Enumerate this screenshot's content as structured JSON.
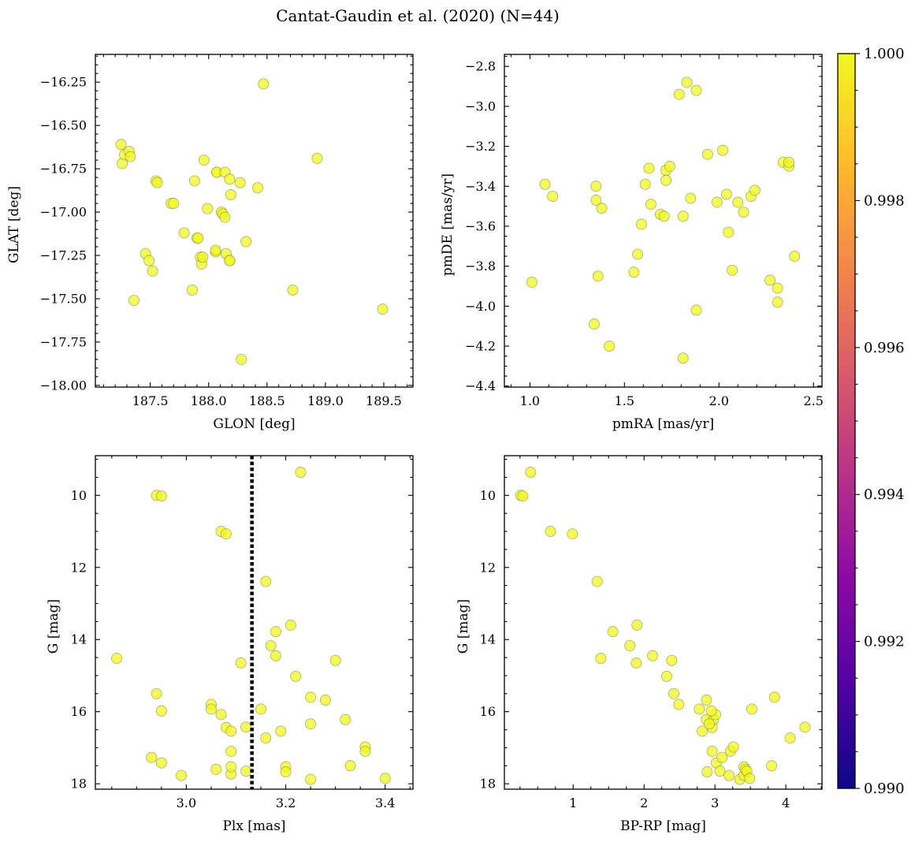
{
  "figure": {
    "title": "Cantat-Gaudin et al. (2020) (N=44)"
  },
  "colorbar": {
    "range": [
      0.99,
      1.0
    ],
    "ticks": [
      "0.990",
      "0.992",
      "0.994",
      "0.996",
      "0.998",
      "1.000"
    ],
    "colormap": [
      "#0d0887",
      "#5302a3",
      "#8b0aa5",
      "#b83289",
      "#db5c68",
      "#f48849",
      "#febd2a",
      "#f0f921"
    ]
  },
  "marker_color": "#f0f921",
  "chart_data": [
    {
      "type": "scatter",
      "id": "sky",
      "xlabel": "GLON [deg]",
      "ylabel": "GLAT [deg]",
      "xlim": [
        187.03,
        189.75
      ],
      "ylim": [
        -18.01,
        -16.09
      ],
      "invert_y": false,
      "xticks": [
        187.5,
        188.0,
        188.5,
        189.0,
        189.5
      ],
      "xtick_labels": [
        "187.5",
        "188.0",
        "188.5",
        "189.0",
        "189.5"
      ],
      "yticks": [
        -16.25,
        -16.5,
        -16.75,
        -17.0,
        -17.25,
        -17.5,
        -17.75,
        -18.0
      ],
      "ytick_labels": [
        "−16.25",
        "−16.50",
        "−16.75",
        "−17.00",
        "−17.25",
        "−17.50",
        "−17.75",
        "−18.00"
      ],
      "x_minor": 0.1,
      "y_minor": 0.05,
      "points": [
        [
          187.25,
          -16.61
        ],
        [
          187.26,
          -16.72
        ],
        [
          187.28,
          -16.67
        ],
        [
          187.32,
          -16.65
        ],
        [
          187.33,
          -16.68
        ],
        [
          187.36,
          -17.51
        ],
        [
          187.46,
          -17.24
        ],
        [
          187.49,
          -17.28
        ],
        [
          187.52,
          -17.34
        ],
        [
          187.55,
          -16.82
        ],
        [
          187.56,
          -16.83
        ],
        [
          187.68,
          -16.95
        ],
        [
          187.7,
          -16.95
        ],
        [
          187.79,
          -17.12
        ],
        [
          187.86,
          -17.45
        ],
        [
          187.88,
          -16.82
        ],
        [
          187.9,
          -17.15
        ],
        [
          187.91,
          -17.15
        ],
        [
          187.93,
          -17.26
        ],
        [
          187.94,
          -17.3
        ],
        [
          187.95,
          -17.26
        ],
        [
          187.96,
          -16.7
        ],
        [
          187.99,
          -16.98
        ],
        [
          188.06,
          -17.23
        ],
        [
          188.06,
          -17.22
        ],
        [
          188.07,
          -16.77
        ],
        [
          188.07,
          -16.77
        ],
        [
          188.11,
          -17.0
        ],
        [
          188.12,
          -17.01
        ],
        [
          188.14,
          -16.77
        ],
        [
          188.14,
          -17.03
        ],
        [
          188.15,
          -17.24
        ],
        [
          188.18,
          -17.28
        ],
        [
          188.18,
          -17.28
        ],
        [
          188.18,
          -16.81
        ],
        [
          188.19,
          -16.9
        ],
        [
          188.27,
          -16.83
        ],
        [
          188.28,
          -17.85
        ],
        [
          188.32,
          -17.17
        ],
        [
          188.42,
          -16.86
        ],
        [
          188.47,
          -16.26
        ],
        [
          188.72,
          -17.45
        ],
        [
          188.93,
          -16.69
        ],
        [
          189.49,
          -17.56
        ]
      ]
    },
    {
      "type": "scatter",
      "id": "pm",
      "xlabel": "pmRA [mas/yr]",
      "ylabel": "pmDE [mas/yr]",
      "xlim": [
        0.865,
        2.545
      ],
      "ylim": [
        -4.405,
        -2.74
      ],
      "invert_y": false,
      "xticks": [
        1.0,
        1.5,
        2.0,
        2.5
      ],
      "xtick_labels": [
        "1.0",
        "1.5",
        "2.0",
        "2.5"
      ],
      "yticks": [
        -2.8,
        -3.0,
        -3.2,
        -3.4,
        -3.6,
        -3.8,
        -4.0,
        -4.2,
        -4.4
      ],
      "ytick_labels": [
        "−2.8",
        "−3.0",
        "−3.2",
        "−3.4",
        "−3.6",
        "−3.8",
        "−4.0",
        "−4.2",
        "−4.4"
      ],
      "x_minor": 0.1,
      "y_minor": 0.05,
      "points": [
        [
          1.01,
          -3.88
        ],
        [
          1.08,
          -3.39
        ],
        [
          1.12,
          -3.45
        ],
        [
          1.34,
          -4.09
        ],
        [
          1.35,
          -3.4
        ],
        [
          1.35,
          -3.47
        ],
        [
          1.36,
          -3.85
        ],
        [
          1.38,
          -3.51
        ],
        [
          1.42,
          -4.2
        ],
        [
          1.55,
          -3.83
        ],
        [
          1.57,
          -3.74
        ],
        [
          1.59,
          -3.59
        ],
        [
          1.61,
          -3.39
        ],
        [
          1.63,
          -3.31
        ],
        [
          1.64,
          -3.49
        ],
        [
          1.69,
          -3.54
        ],
        [
          1.71,
          -3.55
        ],
        [
          1.72,
          -3.32
        ],
        [
          1.72,
          -3.37
        ],
        [
          1.74,
          -3.3
        ],
        [
          1.79,
          -2.94
        ],
        [
          1.81,
          -3.55
        ],
        [
          1.81,
          -4.26
        ],
        [
          1.83,
          -2.88
        ],
        [
          1.85,
          -3.46
        ],
        [
          1.88,
          -2.92
        ],
        [
          1.88,
          -4.02
        ],
        [
          1.94,
          -3.24
        ],
        [
          1.99,
          -3.48
        ],
        [
          2.02,
          -3.22
        ],
        [
          2.04,
          -3.44
        ],
        [
          2.05,
          -3.63
        ],
        [
          2.07,
          -3.82
        ],
        [
          2.1,
          -3.48
        ],
        [
          2.13,
          -3.53
        ],
        [
          2.17,
          -3.45
        ],
        [
          2.19,
          -3.42
        ],
        [
          2.27,
          -3.87
        ],
        [
          2.31,
          -3.91
        ],
        [
          2.31,
          -3.98
        ],
        [
          2.34,
          -3.28
        ],
        [
          2.37,
          -3.3
        ],
        [
          2.37,
          -3.28
        ],
        [
          2.4,
          -3.75
        ]
      ]
    },
    {
      "type": "scatter",
      "id": "cmd-plx",
      "xlabel": "Plx [mas]",
      "ylabel": "G [mag]",
      "xlim": [
        2.817,
        3.456
      ],
      "ylim": [
        18.15,
        8.9
      ],
      "invert_y": true,
      "xticks": [
        3.0,
        3.2,
        3.4
      ],
      "xtick_labels": [
        "3.0",
        "3.2",
        "3.4"
      ],
      "yticks": [
        10,
        12,
        14,
        16,
        18
      ],
      "ytick_labels": [
        "10",
        "12",
        "14",
        "16",
        "18"
      ],
      "x_minor": 0.05,
      "y_minor": 0.5,
      "vline": {
        "x": 3.132,
        "style": "dotted"
      },
      "points": [
        [
          2.86,
          14.52
        ],
        [
          2.93,
          17.27
        ],
        [
          2.94,
          10.0
        ],
        [
          2.94,
          15.5
        ],
        [
          2.95,
          17.42
        ],
        [
          2.95,
          10.02
        ],
        [
          2.95,
          15.98
        ],
        [
          2.99,
          17.77
        ],
        [
          3.05,
          15.8
        ],
        [
          3.05,
          15.93
        ],
        [
          3.06,
          17.6
        ],
        [
          3.07,
          16.08
        ],
        [
          3.07,
          11.0
        ],
        [
          3.08,
          16.44
        ],
        [
          3.08,
          11.07
        ],
        [
          3.09,
          17.73
        ],
        [
          3.09,
          17.53
        ],
        [
          3.09,
          16.54
        ],
        [
          3.09,
          17.1
        ],
        [
          3.11,
          14.65
        ],
        [
          3.12,
          16.43
        ],
        [
          3.12,
          17.65
        ],
        [
          3.15,
          15.93
        ],
        [
          3.16,
          12.39
        ],
        [
          3.16,
          16.73
        ],
        [
          3.17,
          14.17
        ],
        [
          3.18,
          13.78
        ],
        [
          3.18,
          14.45
        ],
        [
          3.19,
          16.54
        ],
        [
          3.2,
          17.53
        ],
        [
          3.2,
          17.67
        ],
        [
          3.21,
          13.6
        ],
        [
          3.22,
          15.02
        ],
        [
          3.23,
          9.36
        ],
        [
          3.25,
          15.6
        ],
        [
          3.25,
          16.34
        ],
        [
          3.25,
          17.88
        ],
        [
          3.28,
          15.68
        ],
        [
          3.3,
          14.58
        ],
        [
          3.32,
          16.22
        ],
        [
          3.33,
          17.5
        ],
        [
          3.36,
          16.98
        ],
        [
          3.36,
          17.1
        ],
        [
          3.4,
          17.85
        ]
      ]
    },
    {
      "type": "scatter",
      "id": "cmd-color",
      "xlabel": "BP-RP [mag]",
      "ylabel": "G [mag]",
      "xlim": [
        0.03,
        4.51
      ],
      "ylim": [
        18.15,
        8.9
      ],
      "invert_y": true,
      "xticks": [
        1,
        2,
        3,
        4
      ],
      "xtick_labels": [
        "1",
        "2",
        "3",
        "4"
      ],
      "yticks": [
        10,
        12,
        14,
        16,
        18
      ],
      "ytick_labels": [
        "10",
        "12",
        "14",
        "16",
        "18"
      ],
      "x_minor": 0.25,
      "y_minor": 0.5,
      "points": [
        [
          0.26,
          10.0
        ],
        [
          0.29,
          10.02
        ],
        [
          0.4,
          9.36
        ],
        [
          0.68,
          11.0
        ],
        [
          0.99,
          11.07
        ],
        [
          1.34,
          12.39
        ],
        [
          1.39,
          14.52
        ],
        [
          1.56,
          13.78
        ],
        [
          1.8,
          14.17
        ],
        [
          1.89,
          14.65
        ],
        [
          1.9,
          13.6
        ],
        [
          2.12,
          14.45
        ],
        [
          2.32,
          15.02
        ],
        [
          2.39,
          14.58
        ],
        [
          2.42,
          15.5
        ],
        [
          2.49,
          15.8
        ],
        [
          2.78,
          15.93
        ],
        [
          2.82,
          16.54
        ],
        [
          2.88,
          15.68
        ],
        [
          2.88,
          16.22
        ],
        [
          2.89,
          17.67
        ],
        [
          2.96,
          17.1
        ],
        [
          2.96,
          16.44
        ],
        [
          2.98,
          16.22
        ],
        [
          3.01,
          16.08
        ],
        [
          3.02,
          17.42
        ],
        [
          3.07,
          17.65
        ],
        [
          3.1,
          17.27
        ],
        [
          3.2,
          17.77
        ],
        [
          3.22,
          17.1
        ],
        [
          3.26,
          16.98
        ],
        [
          3.35,
          17.88
        ],
        [
          3.41,
          17.77
        ],
        [
          3.41,
          17.53
        ],
        [
          3.43,
          17.6
        ],
        [
          3.45,
          17.65
        ],
        [
          3.49,
          17.85
        ],
        [
          3.52,
          15.93
        ],
        [
          3.8,
          17.5
        ],
        [
          3.84,
          15.6
        ],
        [
          4.06,
          16.73
        ],
        [
          4.27,
          16.43
        ],
        [
          2.95,
          15.98
        ],
        [
          2.92,
          16.34
        ]
      ]
    }
  ]
}
